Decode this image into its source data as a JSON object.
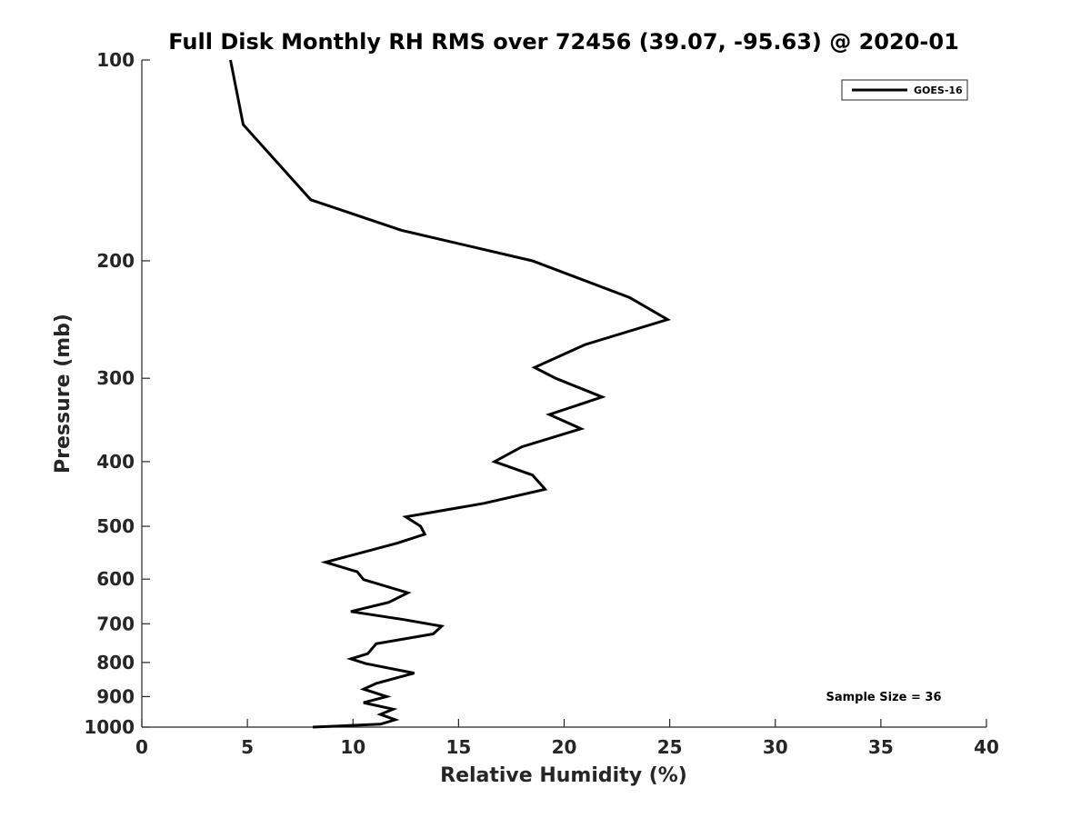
{
  "chart_data": {
    "type": "line",
    "title": "Full Disk Monthly RH RMS over 72456 (39.07, -95.63) @ 2020-01",
    "xlabel": "Relative Humidity (%)",
    "ylabel": "Pressure (mb)",
    "xlim": [
      0,
      40
    ],
    "ylim": [
      100,
      1000
    ],
    "y_scale": "log",
    "y_reversed": true,
    "x_ticks": [
      "0",
      "5",
      "10",
      "15",
      "20",
      "25",
      "30",
      "35",
      "40"
    ],
    "y_ticks": [
      "100",
      "200",
      "300",
      "400",
      "500",
      "600",
      "700",
      "800",
      "900",
      "1000"
    ],
    "legend_position": "top-right",
    "annotation": "Sample Size = 36",
    "grid": false,
    "series": [
      {
        "name": "GOES-16",
        "color": "#000000",
        "points": [
          [
            4.2,
            100
          ],
          [
            4.8,
            125
          ],
          [
            8.0,
            162
          ],
          [
            12.3,
            180
          ],
          [
            18.5,
            200
          ],
          [
            23.1,
            227
          ],
          [
            24.9,
            245
          ],
          [
            21.0,
            267
          ],
          [
            18.6,
            289
          ],
          [
            19.6,
            300
          ],
          [
            21.8,
            320
          ],
          [
            19.3,
            340
          ],
          [
            20.8,
            357
          ],
          [
            18.0,
            380
          ],
          [
            16.7,
            400
          ],
          [
            18.5,
            419
          ],
          [
            19.1,
            440
          ],
          [
            16.2,
            462
          ],
          [
            12.5,
            484
          ],
          [
            13.2,
            500
          ],
          [
            13.4,
            514
          ],
          [
            12.1,
            530
          ],
          [
            8.7,
            566
          ],
          [
            10.2,
            585
          ],
          [
            10.5,
            601
          ],
          [
            12.6,
            629
          ],
          [
            11.7,
            650
          ],
          [
            9.9,
            671
          ],
          [
            12.4,
            690
          ],
          [
            14.2,
            706
          ],
          [
            13.8,
            725
          ],
          [
            11.1,
            750
          ],
          [
            10.7,
            776
          ],
          [
            9.9,
            790
          ],
          [
            10.6,
            803
          ],
          [
            12.9,
            830
          ],
          [
            11.1,
            860
          ],
          [
            10.5,
            877
          ],
          [
            11.6,
            900
          ],
          [
            10.5,
            919
          ],
          [
            11.9,
            940
          ],
          [
            11.3,
            957
          ],
          [
            12.0,
            975
          ],
          [
            11.3,
            990
          ],
          [
            8.1,
            1000
          ]
        ]
      }
    ]
  }
}
